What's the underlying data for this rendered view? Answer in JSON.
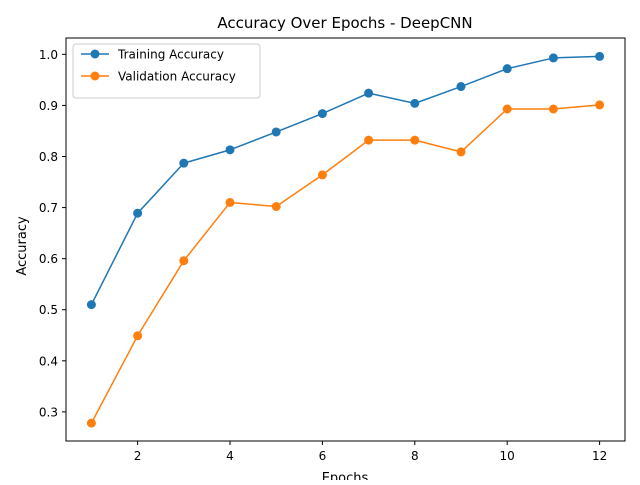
{
  "chart_data": {
    "type": "line",
    "title": "Accuracy Over Epochs - DeepCNN",
    "xlabel": "Epochs",
    "ylabel": "Accuracy",
    "x": [
      1,
      2,
      3,
      4,
      5,
      6,
      7,
      8,
      9,
      10,
      11,
      12
    ],
    "xlim": [
      0.45,
      12.55
    ],
    "ylim": [
      0.243,
      1.032
    ],
    "xticks": [
      2,
      4,
      6,
      8,
      10,
      12
    ],
    "yticks": [
      0.3,
      0.4,
      0.5,
      0.6,
      0.7,
      0.8,
      0.9,
      1.0
    ],
    "xtick_labels": [
      "2",
      "4",
      "6",
      "8",
      "10",
      "12"
    ],
    "ytick_labels": [
      "0.3",
      "0.4",
      "0.5",
      "0.6",
      "0.7",
      "0.8",
      "0.9",
      "1.0"
    ],
    "grid": false,
    "legend_position": "upper-left",
    "series": [
      {
        "name": "Training Accuracy",
        "color": "#1f77b4",
        "marker": "circle",
        "values": [
          0.51,
          0.689,
          0.787,
          0.813,
          0.848,
          0.884,
          0.924,
          0.904,
          0.937,
          0.972,
          0.993,
          0.996
        ]
      },
      {
        "name": "Validation Accuracy",
        "color": "#ff7f0e",
        "marker": "circle",
        "values": [
          0.278,
          0.449,
          0.596,
          0.71,
          0.702,
          0.764,
          0.832,
          0.832,
          0.809,
          0.893,
          0.893,
          0.901
        ]
      }
    ]
  }
}
